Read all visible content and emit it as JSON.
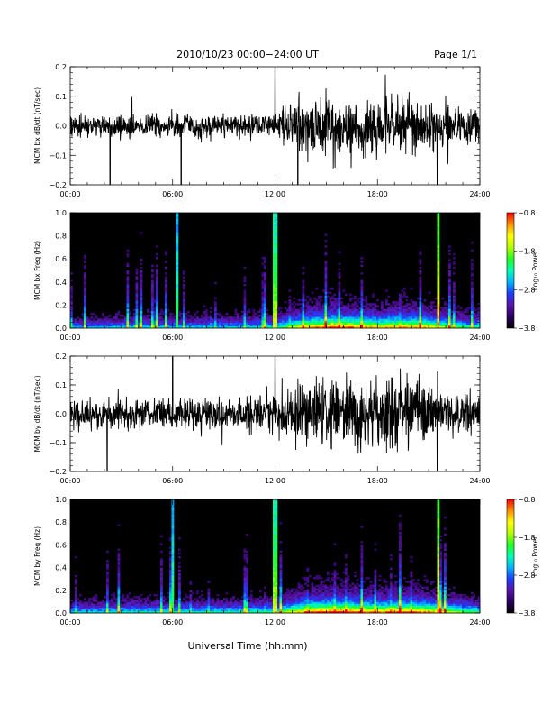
{
  "header": {
    "title": "2010/10/23  00:00−24:00 UT",
    "page": "Page 1/1"
  },
  "footer": {
    "xlabel": "Universal Time (hh:mm)"
  },
  "colors": {
    "trace": "#000000",
    "spectrogram_background": "#000000",
    "colormap": [
      "#000000",
      "#2a0060",
      "#5a14a8",
      "#1e3cff",
      "#00b4ff",
      "#00ffb4",
      "#20ff20",
      "#b4ff00",
      "#ffff00",
      "#ff9000",
      "#ff0000"
    ]
  },
  "chart_data": [
    {
      "type": "line",
      "ylabel": "MCM bx dB/dt (nT/sec)",
      "xlim": [
        "00:00",
        "24:00"
      ],
      "ylim": [
        -0.2,
        0.2
      ],
      "x_ticks": [
        "00:00",
        "06:00",
        "12:00",
        "18:00",
        "24:00"
      ],
      "y_ticks": [
        "−0.2",
        "−0.1",
        "0.0",
        "0.1",
        "0.2"
      ],
      "envelope": {
        "x_hours": [
          0,
          3,
          6,
          9,
          12,
          13,
          14,
          15,
          16,
          17,
          18,
          19,
          20,
          21,
          22,
          23,
          24
        ],
        "amplitude": [
          0.06,
          0.07,
          0.07,
          0.07,
          0.08,
          0.13,
          0.17,
          0.19,
          0.19,
          0.17,
          0.16,
          0.18,
          0.17,
          0.14,
          0.12,
          0.1,
          0.08
        ]
      },
      "spikes": [
        {
          "time": "02:20",
          "value": -0.2
        },
        {
          "time": "06:30",
          "value": -0.2
        },
        {
          "time": "12:00",
          "value": 0.2
        },
        {
          "time": "13:20",
          "value": -0.2
        },
        {
          "time": "21:30",
          "value": -0.2
        }
      ],
      "grid": false
    },
    {
      "type": "heatmap",
      "ylabel": "MCM bx Freq (Hz)",
      "xlim": [
        "00:00",
        "24:00"
      ],
      "ylim": [
        0.0,
        1.0
      ],
      "x_ticks": [
        "00:00",
        "06:00",
        "12:00",
        "18:00",
        "24:00"
      ],
      "y_ticks": [
        "0.0",
        "0.2",
        "0.4",
        "0.6",
        "0.8",
        "1.0"
      ],
      "colorbar": {
        "label": "Log₁₀ Power",
        "range": [
          -3.8,
          -0.8
        ],
        "ticks": [
          "−0.8",
          "−1.8",
          "−2.8",
          "−3.8"
        ]
      },
      "activity": {
        "x_hours": [
          0,
          3,
          6,
          9,
          12,
          13,
          14,
          15,
          16,
          17,
          18,
          19,
          20,
          21,
          22,
          23,
          24
        ],
        "level": [
          0.35,
          0.4,
          0.4,
          0.4,
          0.45,
          0.6,
          0.75,
          0.8,
          0.8,
          0.75,
          0.7,
          0.75,
          0.75,
          0.7,
          0.6,
          0.5,
          0.45
        ]
      },
      "vertical_features": [
        {
          "time": "06:15",
          "strength": 0.6
        },
        {
          "time": "12:00",
          "strength": 0.75
        },
        {
          "time": "21:30",
          "strength": 0.9
        }
      ]
    },
    {
      "type": "line",
      "ylabel": "MCM by dB/dt (nT/sec)",
      "xlim": [
        "00:00",
        "24:00"
      ],
      "ylim": [
        -0.2,
        0.2
      ],
      "x_ticks": [
        "00:00",
        "06:00",
        "12:00",
        "18:00",
        "24:00"
      ],
      "y_ticks": [
        "−0.2",
        "−0.1",
        "0.0",
        "0.1",
        "0.2"
      ],
      "envelope": {
        "x_hours": [
          0,
          3,
          6,
          9,
          12,
          13,
          14,
          15,
          16,
          17,
          18,
          19,
          20,
          21,
          22,
          23,
          24
        ],
        "amplitude": [
          0.08,
          0.09,
          0.09,
          0.09,
          0.11,
          0.17,
          0.22,
          0.22,
          0.2,
          0.2,
          0.2,
          0.21,
          0.2,
          0.18,
          0.16,
          0.13,
          0.11
        ]
      },
      "spikes": [
        {
          "time": "02:10",
          "value": -0.2
        },
        {
          "time": "06:00",
          "value": 0.2
        },
        {
          "time": "12:00",
          "value": 0.2
        },
        {
          "time": "21:30",
          "value": -0.2
        }
      ],
      "grid": false
    },
    {
      "type": "heatmap",
      "ylabel": "MCM by Freq (Hz)",
      "xlim": [
        "00:00",
        "24:00"
      ],
      "ylim": [
        0.0,
        1.0
      ],
      "x_ticks": [
        "00:00",
        "06:00",
        "12:00",
        "18:00",
        "24:00"
      ],
      "y_ticks": [
        "0.0",
        "0.2",
        "0.4",
        "0.6",
        "0.8",
        "1.0"
      ],
      "colorbar": {
        "label": "Log₁₀ Power",
        "range": [
          -3.8,
          -0.8
        ],
        "ticks": [
          "−0.8",
          "−1.8",
          "−2.8",
          "−3.8"
        ]
      },
      "activity": {
        "x_hours": [
          0,
          3,
          6,
          9,
          12,
          13,
          14,
          15,
          16,
          17,
          18,
          19,
          20,
          21,
          22,
          23,
          24
        ],
        "level": [
          0.4,
          0.45,
          0.45,
          0.45,
          0.5,
          0.65,
          0.8,
          0.85,
          0.85,
          0.8,
          0.75,
          0.8,
          0.8,
          0.75,
          0.65,
          0.55,
          0.5
        ]
      },
      "vertical_features": [
        {
          "time": "06:00",
          "strength": 0.6
        },
        {
          "time": "12:00",
          "strength": 0.75
        },
        {
          "time": "21:30",
          "strength": 0.9
        }
      ]
    }
  ]
}
